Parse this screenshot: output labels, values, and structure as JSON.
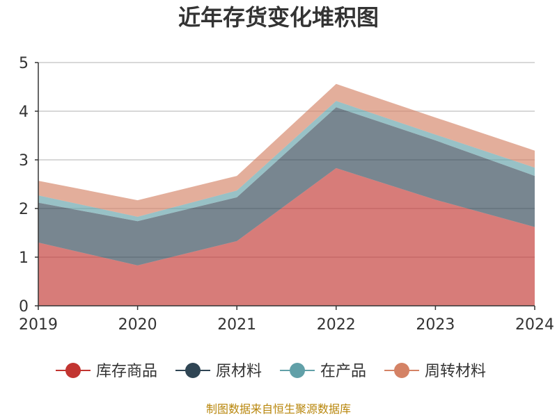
{
  "chart_data": {
    "type": "area",
    "title": "近年存货变化堆积图",
    "xlabel": "",
    "ylabel": "",
    "ylim": [
      0,
      5
    ],
    "yticks": [
      0,
      1,
      2,
      3,
      4,
      5
    ],
    "grid": true,
    "stacked": true,
    "legend_position": "bottom",
    "x": [
      "2019",
      "2020",
      "2021",
      "2022",
      "2023",
      "2024"
    ],
    "series": [
      {
        "name": "库存商品",
        "color": "#c23531",
        "values": [
          1.3,
          0.83,
          1.33,
          2.83,
          2.18,
          1.62
        ]
      },
      {
        "name": "原材料",
        "color": "#2f4554",
        "values": [
          0.82,
          0.91,
          0.9,
          1.25,
          1.22,
          1.05
        ]
      },
      {
        "name": "在产品",
        "color": "#61a0a8",
        "values": [
          0.15,
          0.09,
          0.14,
          0.13,
          0.12,
          0.17
        ]
      },
      {
        "name": "周转材料",
        "color": "#d48265",
        "values": [
          0.3,
          0.34,
          0.3,
          0.35,
          0.35,
          0.35
        ]
      }
    ]
  },
  "source_note": "制图数据来自恒生聚源数据库"
}
